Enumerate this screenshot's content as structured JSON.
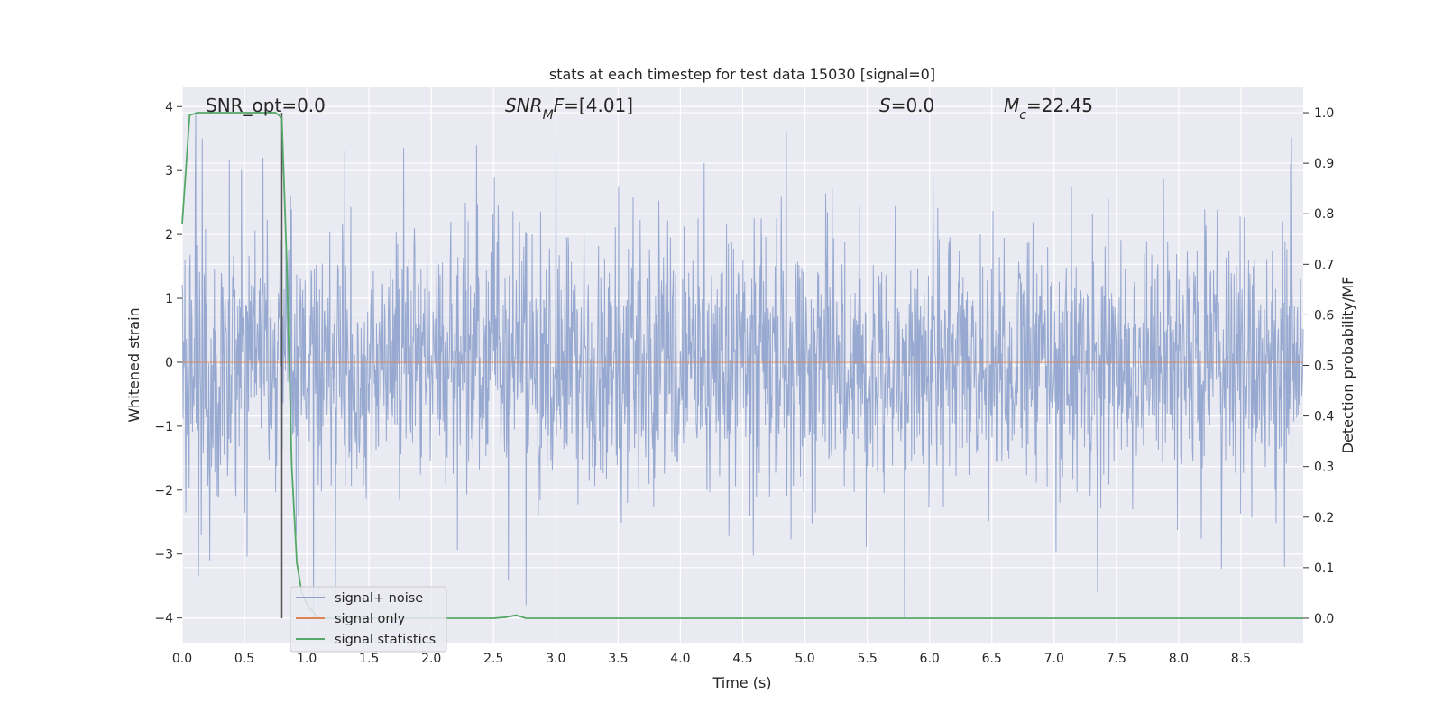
{
  "chart_data": {
    "type": "line",
    "title": "stats at each timestep for test data 15030 [signal=0]",
    "xlabel": "Time (s)",
    "ylabel": "Whitened strain",
    "y2label": "Detection probability/MF",
    "xlim": [
      0,
      9.0
    ],
    "ylim": [
      -4.4,
      4.3
    ],
    "y2lim": [
      -0.05,
      1.05
    ],
    "x_ticks": [
      "0.0",
      "0.5",
      "1.0",
      "1.5",
      "2.0",
      "2.5",
      "3.0",
      "3.5",
      "4.0",
      "4.5",
      "5.0",
      "5.5",
      "6.0",
      "6.5",
      "7.0",
      "7.5",
      "8.0",
      "8.5"
    ],
    "y_ticks": [
      "−4",
      "−3",
      "−2",
      "−1",
      "0",
      "1",
      "2",
      "3",
      "4"
    ],
    "y2_ticks": [
      "0.0",
      "0.1",
      "0.2",
      "0.3",
      "0.4",
      "0.5",
      "0.6",
      "0.7",
      "0.8",
      "0.9",
      "1.0"
    ],
    "grid": true,
    "legend_position": "lower-left",
    "annotations": [
      {
        "parts": [
          {
            "t": "SNR_opt=0.0",
            "i": false
          }
        ]
      },
      {
        "parts": [
          {
            "t": "SNR",
            "i": true
          },
          {
            "t": "M",
            "i": true,
            "sub": true
          },
          {
            "t": "F",
            "i": true
          },
          {
            "t": "=[4.01]",
            "i": false
          }
        ]
      },
      {
        "parts": [
          {
            "t": "S",
            "i": true
          },
          {
            "t": "=0.0",
            "i": false
          }
        ]
      },
      {
        "parts": [
          {
            "t": "M",
            "i": true
          },
          {
            "t": "c",
            "i": true,
            "sub": true
          },
          {
            "t": "=22.45",
            "i": false
          }
        ]
      }
    ],
    "vline": {
      "x": 0.8,
      "y_from": 0.0,
      "y_to": 1.0,
      "color": "#555555"
    },
    "series": [
      {
        "name": "signal+ noise",
        "axis": "left",
        "color": "#8ea2cc",
        "description_stats": {
          "mean": 0.0,
          "std": 1.0,
          "min": -4.0,
          "max": 3.9
        },
        "peaks": [
          {
            "x": 0.11,
            "y": 3.9
          },
          {
            "x": 0.16,
            "y": 3.5
          },
          {
            "x": 0.13,
            "y": -3.35
          },
          {
            "x": 0.22,
            "y": -3.1
          },
          {
            "x": 0.65,
            "y": 3.2
          },
          {
            "x": 1.23,
            "y": -3.7
          },
          {
            "x": 1.78,
            "y": 3.35
          },
          {
            "x": 2.62,
            "y": -3.4
          },
          {
            "x": 2.76,
            "y": -3.8
          },
          {
            "x": 3.0,
            "y": 3.65
          },
          {
            "x": 4.85,
            "y": 3.6
          },
          {
            "x": 5.8,
            "y": -4.0
          },
          {
            "x": 7.35,
            "y": -3.6
          },
          {
            "x": 8.9,
            "y": 3.1
          },
          {
            "x": 8.85,
            "y": -3.2
          }
        ]
      },
      {
        "name": "signal only",
        "axis": "left",
        "color": "#dd8452",
        "x": [
          0.0,
          9.0
        ],
        "y": [
          0.0,
          0.0
        ]
      },
      {
        "name": "signal statistics",
        "axis": "right",
        "color": "#55a868",
        "x": [
          0.0,
          0.06,
          0.12,
          0.75,
          0.8,
          0.84,
          0.88,
          0.92,
          0.96,
          1.02,
          1.1,
          1.3,
          2.0,
          2.5,
          2.6,
          2.68,
          2.76,
          3.0,
          9.0
        ],
        "y": [
          0.78,
          0.995,
          1.0,
          1.0,
          0.99,
          0.7,
          0.3,
          0.11,
          0.05,
          0.02,
          0.0,
          0.0,
          0.0,
          0.0,
          0.002,
          0.006,
          0.0,
          0.0,
          0.0
        ]
      }
    ]
  }
}
